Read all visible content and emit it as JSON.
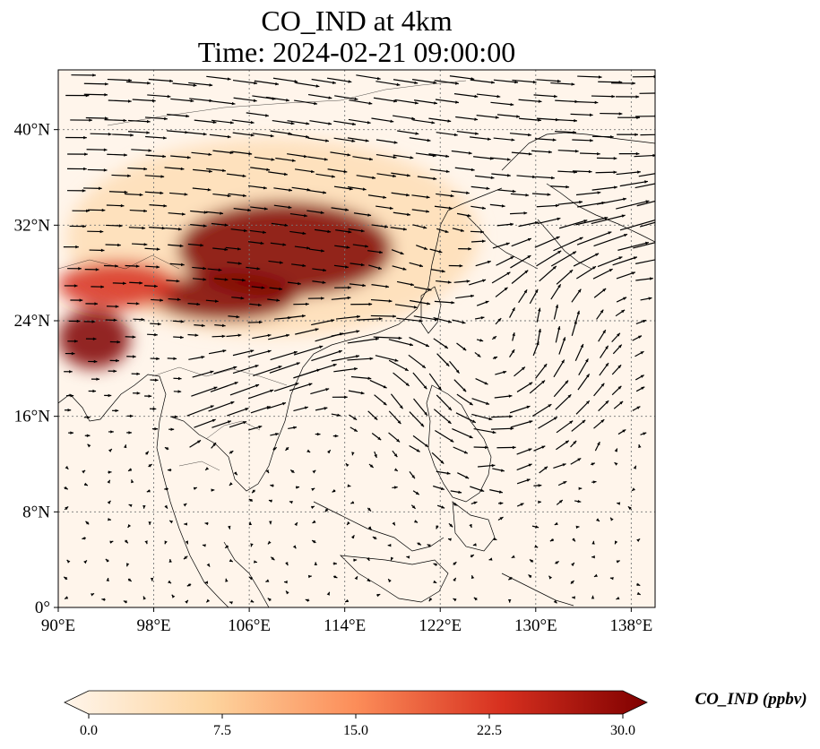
{
  "title": "CO_IND at 4km",
  "subtitle": "Time: 2024-02-21 09:00:00",
  "map": {
    "extent": {
      "lon_min": 90,
      "lon_max": 140,
      "lat_min": 0,
      "lat_max": 45
    },
    "x_ticks": [
      {
        "value": 90,
        "label": "90°E"
      },
      {
        "value": 98,
        "label": "98°E"
      },
      {
        "value": 106,
        "label": "106°E"
      },
      {
        "value": 114,
        "label": "114°E"
      },
      {
        "value": 122,
        "label": "122°E"
      },
      {
        "value": 130,
        "label": "130°E"
      },
      {
        "value": 138,
        "label": "138°E"
      }
    ],
    "y_ticks": [
      {
        "value": 0,
        "label": "0°"
      },
      {
        "value": 8,
        "label": "8°N"
      },
      {
        "value": 16,
        "label": "16°N"
      },
      {
        "value": 24,
        "label": "24°N"
      },
      {
        "value": 32,
        "label": "32°N"
      },
      {
        "value": 40,
        "label": "40°N"
      }
    ],
    "gridlines": true,
    "field": "CO_IND",
    "wind_vectors": "quiver",
    "high_concentration_regions": [
      {
        "name": "central-china-plume",
        "lon": [
          100,
          118
        ],
        "lat": [
          26,
          34
        ],
        "peak": 30
      },
      {
        "name": "south-china-band",
        "lon": [
          98,
          110
        ],
        "lat": [
          24,
          28
        ],
        "peak": 28
      },
      {
        "name": "indochina-west",
        "lon": [
          90,
          96
        ],
        "lat": [
          20,
          25
        ],
        "peak": 28
      },
      {
        "name": "bay-of-bengal-north",
        "lon": [
          90,
          100
        ],
        "lat": [
          25,
          29
        ],
        "peak": 22
      }
    ],
    "anticyclone_center": {
      "lon": 126,
      "lat": 20
    }
  },
  "colorbar": {
    "label": "CO_IND (ppbv)",
    "min": 0,
    "max": 30,
    "ticks": [
      "0.0",
      "7.5",
      "15.0",
      "22.5",
      "30.0"
    ],
    "colors": [
      "#fff5eb",
      "#fdd49e",
      "#fc8d59",
      "#d7301f",
      "#7f0000"
    ],
    "extend": "both"
  }
}
